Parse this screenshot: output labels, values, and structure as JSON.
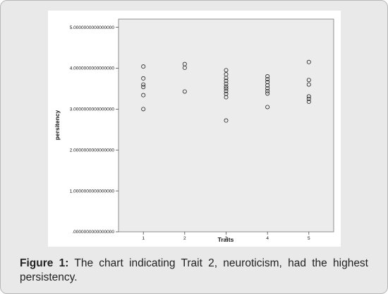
{
  "caption": {
    "label": "Figure 1:",
    "text": " The chart indicating Trait 2, neuroticism, had the highest persistency."
  },
  "chart_data": {
    "type": "scatter",
    "xlabel": "Traits",
    "ylabel": "persitency",
    "xlim": [
      0.4,
      5.6
    ],
    "ylim": [
      0,
      5.2
    ],
    "x_ticks": [
      1,
      2,
      3,
      4,
      5
    ],
    "x_tick_labels": [
      "1",
      "2",
      "3",
      "4",
      "5"
    ],
    "y_ticks": [
      0,
      1,
      2,
      3,
      4,
      5
    ],
    "y_tick_labels": [
      ".0000000000000000",
      "1.0000000000000000",
      "2.0000000000000000",
      "3.0000000000000000",
      "4.0000000000000000",
      "5.0000000000000000"
    ],
    "grid": false,
    "marker": "open-circle",
    "plot_bg": "#ececec",
    "points": [
      {
        "x": 1,
        "y": 4.04
      },
      {
        "x": 1,
        "y": 3.75
      },
      {
        "x": 1,
        "y": 3.6
      },
      {
        "x": 1,
        "y": 3.54
      },
      {
        "x": 1,
        "y": 3.34
      },
      {
        "x": 1,
        "y": 3.0
      },
      {
        "x": 2,
        "y": 4.1
      },
      {
        "x": 2,
        "y": 4.01
      },
      {
        "x": 2,
        "y": 3.43
      },
      {
        "x": 3,
        "y": 3.95
      },
      {
        "x": 3,
        "y": 3.85
      },
      {
        "x": 3,
        "y": 3.76
      },
      {
        "x": 3,
        "y": 3.69
      },
      {
        "x": 3,
        "y": 3.62
      },
      {
        "x": 3,
        "y": 3.55
      },
      {
        "x": 3,
        "y": 3.5
      },
      {
        "x": 3,
        "y": 3.44
      },
      {
        "x": 3,
        "y": 3.37
      },
      {
        "x": 3,
        "y": 3.29
      },
      {
        "x": 3,
        "y": 2.72
      },
      {
        "x": 4,
        "y": 3.8
      },
      {
        "x": 4,
        "y": 3.73
      },
      {
        "x": 4,
        "y": 3.66
      },
      {
        "x": 4,
        "y": 3.58
      },
      {
        "x": 4,
        "y": 3.51
      },
      {
        "x": 4,
        "y": 3.44
      },
      {
        "x": 4,
        "y": 3.38
      },
      {
        "x": 4,
        "y": 3.05
      },
      {
        "x": 5,
        "y": 4.15
      },
      {
        "x": 5,
        "y": 3.71
      },
      {
        "x": 5,
        "y": 3.6
      },
      {
        "x": 5,
        "y": 3.31
      },
      {
        "x": 5,
        "y": 3.25
      },
      {
        "x": 5,
        "y": 3.18
      }
    ]
  }
}
